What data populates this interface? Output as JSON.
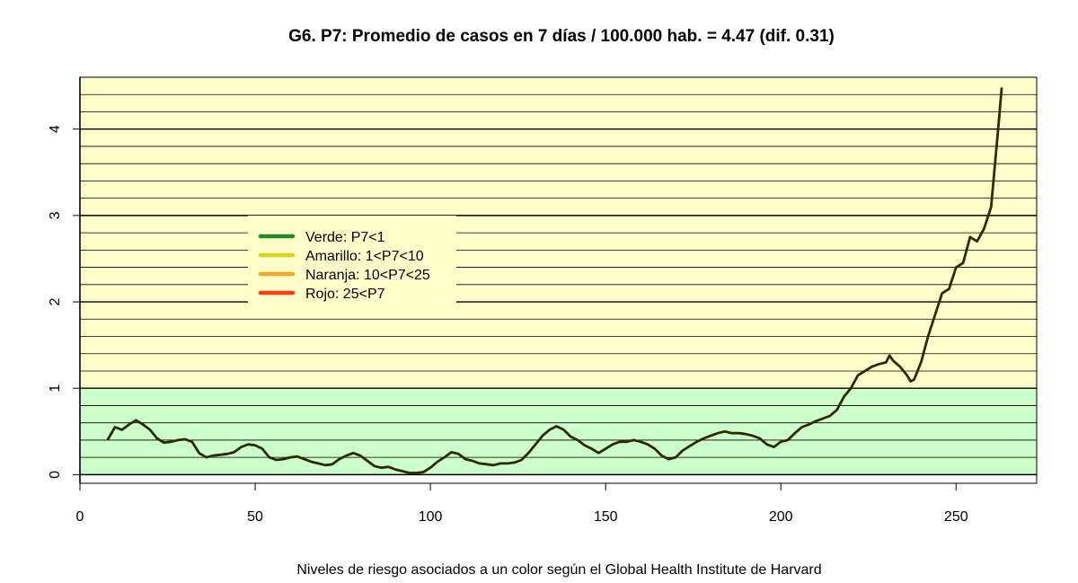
{
  "chart_data": {
    "type": "line",
    "title": "G6. P7: Promedio de casos en 7 días / 100.000 hab. = 4.47 (dif. 0.31)",
    "xlabel": "Niveles de riesgo asociados a un color según el Global Health Institute de Harvard",
    "ylabel": "",
    "xlim": [
      0,
      273
    ],
    "ylim": [
      -0.1,
      4.6
    ],
    "x_ticks": [
      0,
      50,
      100,
      150,
      200,
      250
    ],
    "y_ticks": [
      0,
      1,
      2,
      3,
      4
    ],
    "grid": true,
    "bands": [
      {
        "from": 0,
        "to": 1,
        "color": "#ccffcc"
      },
      {
        "from": 1,
        "to": 4.6,
        "color": "#ffffcc"
      }
    ],
    "legend": {
      "position": "upper-left",
      "entries": [
        {
          "label": "Verde:  P7<1",
          "color": "#228b22"
        },
        {
          "label": "Amarillo: 1<P7<10",
          "color": "#d4d61e"
        },
        {
          "label": "Naranja: 10<P7<25",
          "color": "#f5a623"
        },
        {
          "label": "Rojo:  25<P7",
          "color": "#ff3b0f"
        }
      ]
    },
    "series": [
      {
        "color": "#2b2b00",
        "points": [
          [
            8,
            0.41
          ],
          [
            10,
            0.55
          ],
          [
            12,
            0.52
          ],
          [
            14,
            0.58
          ],
          [
            16,
            0.63
          ],
          [
            18,
            0.58
          ],
          [
            20,
            0.52
          ],
          [
            22,
            0.42
          ],
          [
            24,
            0.37
          ],
          [
            26,
            0.38
          ],
          [
            28,
            0.4
          ],
          [
            30,
            0.41
          ],
          [
            32,
            0.38
          ],
          [
            34,
            0.25
          ],
          [
            36,
            0.2
          ],
          [
            38,
            0.22
          ],
          [
            40,
            0.23
          ],
          [
            42,
            0.24
          ],
          [
            44,
            0.26
          ],
          [
            46,
            0.32
          ],
          [
            48,
            0.35
          ],
          [
            50,
            0.34
          ],
          [
            52,
            0.3
          ],
          [
            54,
            0.2
          ],
          [
            56,
            0.17
          ],
          [
            58,
            0.18
          ],
          [
            60,
            0.2
          ],
          [
            62,
            0.21
          ],
          [
            64,
            0.18
          ],
          [
            66,
            0.15
          ],
          [
            68,
            0.13
          ],
          [
            70,
            0.11
          ],
          [
            72,
            0.12
          ],
          [
            74,
            0.18
          ],
          [
            76,
            0.22
          ],
          [
            78,
            0.25
          ],
          [
            80,
            0.22
          ],
          [
            82,
            0.16
          ],
          [
            84,
            0.1
          ],
          [
            86,
            0.08
          ],
          [
            88,
            0.09
          ],
          [
            90,
            0.06
          ],
          [
            92,
            0.04
          ],
          [
            94,
            0.02
          ],
          [
            96,
            0.02
          ],
          [
            98,
            0.03
          ],
          [
            100,
            0.08
          ],
          [
            102,
            0.15
          ],
          [
            104,
            0.2
          ],
          [
            106,
            0.26
          ],
          [
            108,
            0.24
          ],
          [
            110,
            0.18
          ],
          [
            112,
            0.16
          ],
          [
            114,
            0.13
          ],
          [
            116,
            0.12
          ],
          [
            118,
            0.11
          ],
          [
            120,
            0.13
          ],
          [
            122,
            0.13
          ],
          [
            124,
            0.14
          ],
          [
            126,
            0.17
          ],
          [
            128,
            0.25
          ],
          [
            130,
            0.35
          ],
          [
            132,
            0.45
          ],
          [
            134,
            0.52
          ],
          [
            136,
            0.56
          ],
          [
            138,
            0.52
          ],
          [
            140,
            0.44
          ],
          [
            142,
            0.4
          ],
          [
            144,
            0.34
          ],
          [
            146,
            0.3
          ],
          [
            148,
            0.25
          ],
          [
            150,
            0.3
          ],
          [
            152,
            0.35
          ],
          [
            154,
            0.38
          ],
          [
            156,
            0.38
          ],
          [
            158,
            0.4
          ],
          [
            160,
            0.38
          ],
          [
            162,
            0.35
          ],
          [
            164,
            0.3
          ],
          [
            166,
            0.22
          ],
          [
            168,
            0.18
          ],
          [
            170,
            0.2
          ],
          [
            172,
            0.28
          ],
          [
            174,
            0.33
          ],
          [
            176,
            0.38
          ],
          [
            178,
            0.42
          ],
          [
            180,
            0.45
          ],
          [
            182,
            0.48
          ],
          [
            184,
            0.5
          ],
          [
            186,
            0.48
          ],
          [
            188,
            0.48
          ],
          [
            190,
            0.47
          ],
          [
            192,
            0.45
          ],
          [
            194,
            0.42
          ],
          [
            196,
            0.35
          ],
          [
            198,
            0.32
          ],
          [
            200,
            0.38
          ],
          [
            202,
            0.4
          ],
          [
            204,
            0.48
          ],
          [
            206,
            0.55
          ],
          [
            208,
            0.58
          ],
          [
            210,
            0.62
          ],
          [
            212,
            0.65
          ],
          [
            214,
            0.68
          ],
          [
            216,
            0.75
          ],
          [
            218,
            0.9
          ],
          [
            220,
            1.0
          ],
          [
            222,
            1.15
          ],
          [
            224,
            1.2
          ],
          [
            226,
            1.25
          ],
          [
            228,
            1.28
          ],
          [
            230,
            1.3
          ],
          [
            231,
            1.38
          ],
          [
            232,
            1.32
          ],
          [
            234,
            1.25
          ],
          [
            236,
            1.15
          ],
          [
            237,
            1.08
          ],
          [
            238,
            1.1
          ],
          [
            240,
            1.3
          ],
          [
            242,
            1.6
          ],
          [
            244,
            1.85
          ],
          [
            246,
            2.1
          ],
          [
            248,
            2.15
          ],
          [
            250,
            2.4
          ],
          [
            252,
            2.45
          ],
          [
            254,
            2.75
          ],
          [
            256,
            2.7
          ],
          [
            258,
            2.85
          ],
          [
            260,
            3.1
          ],
          [
            262,
            4.0
          ],
          [
            263,
            4.47
          ]
        ]
      }
    ]
  }
}
